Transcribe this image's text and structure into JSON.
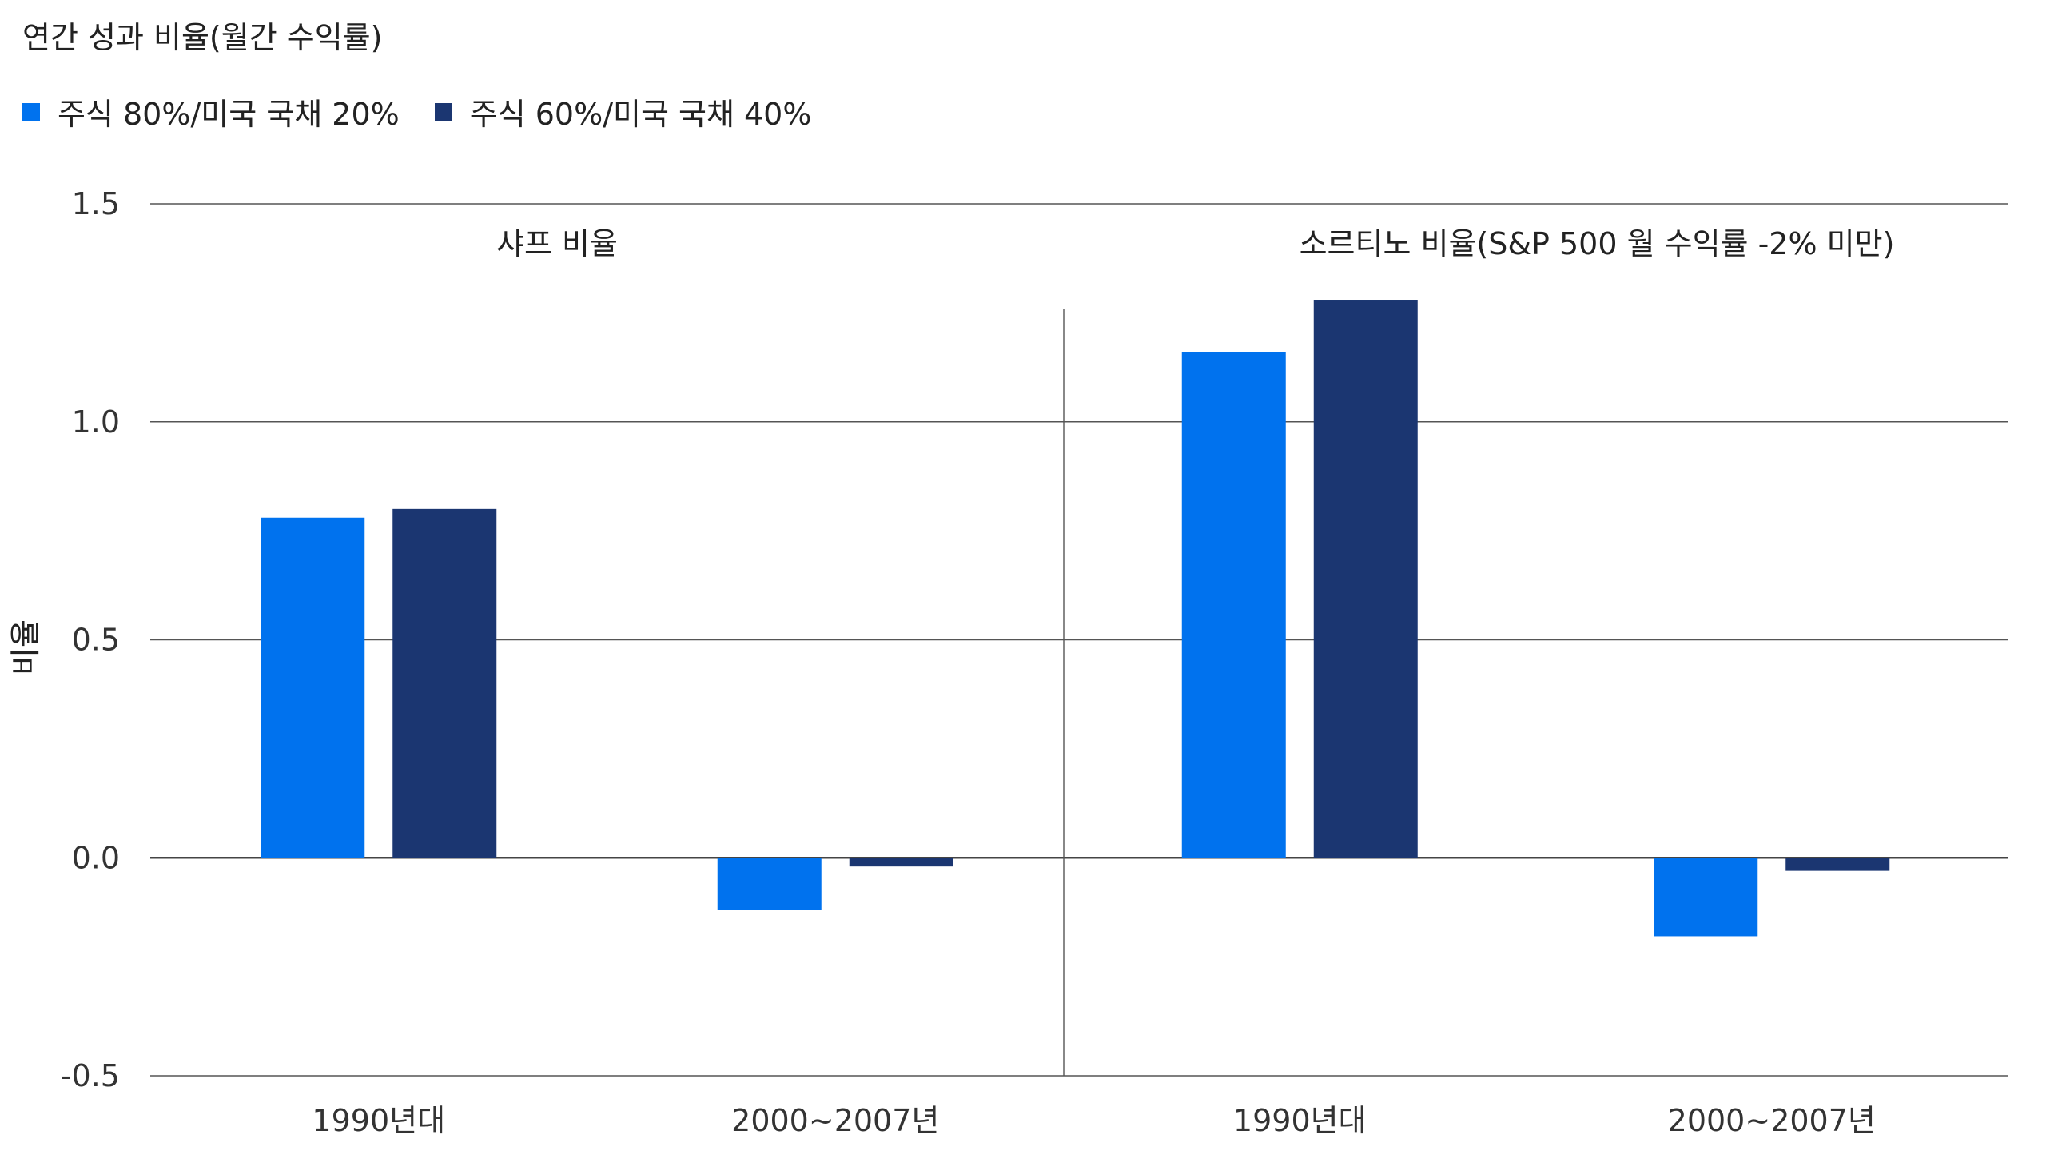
{
  "title": "연간 성과 비율(월간 수익률)",
  "colors": {
    "series1": "#0072ee",
    "series2": "#1b3671",
    "grid": "#555555",
    "zero": "#444444"
  },
  "chart_data": {
    "type": "bar",
    "ylabel": "비율",
    "ylim": [
      -0.5,
      1.5
    ],
    "yticks": [
      "1.5",
      "1.0",
      "0.5",
      "0.0",
      "-0.5"
    ],
    "legend": [
      "주식 80%/미국 국채 20%",
      "주식 60%/미국 국채 40%"
    ],
    "panels": [
      {
        "title": "샤프 비율",
        "categories": [
          "1990년대",
          "2000~2007년"
        ],
        "series": [
          {
            "name": "주식 80%/미국 국채 20%",
            "values": [
              0.78,
              -0.12
            ]
          },
          {
            "name": "주식 60%/미국 국채 40%",
            "values": [
              0.8,
              -0.02
            ]
          }
        ]
      },
      {
        "title": "소르티노 비율(S&P 500 월 수익률 -2% 미만)",
        "categories": [
          "1990년대",
          "2000~2007년"
        ],
        "series": [
          {
            "name": "주식 80%/미국 국채 20%",
            "values": [
              1.16,
              -0.18
            ]
          },
          {
            "name": "주식 60%/미국 국채 40%",
            "values": [
              1.28,
              -0.03
            ]
          }
        ]
      }
    ]
  }
}
